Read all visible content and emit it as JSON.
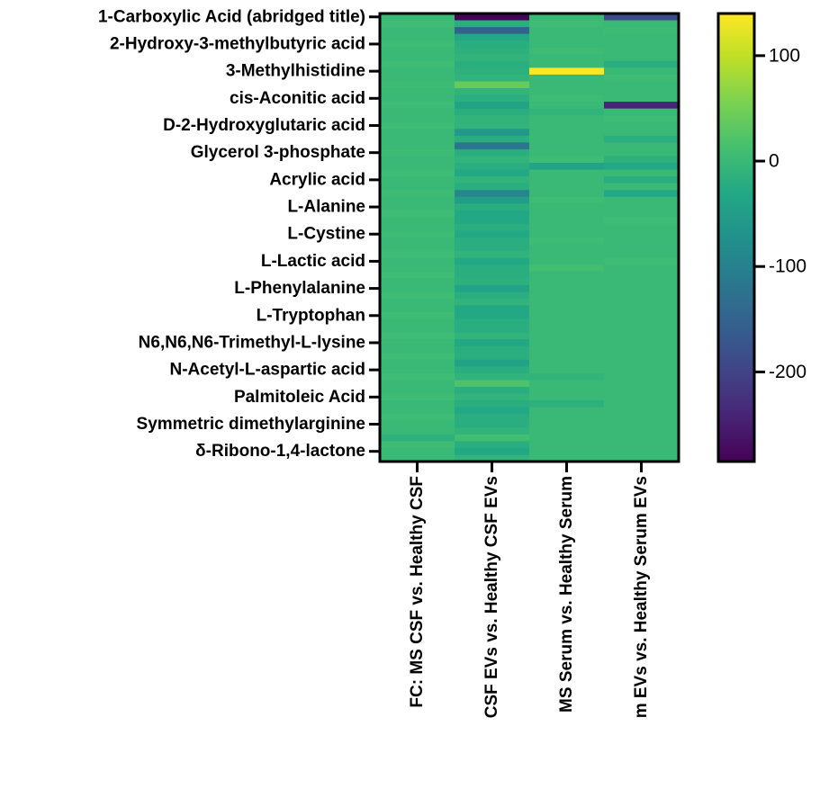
{
  "chart_data": {
    "type": "heatmap",
    "title": "",
    "xlabel": "",
    "ylabel": "",
    "columns": [
      "FC: MS CSF vs. Healthy CSF",
      "CSF EVs vs. Healthy CSF EVs",
      "MS Serum vs. Healthy Serum",
      "m EVs vs. Healthy Serum EVs"
    ],
    "row_tick_labels": [
      "1-Carboxylic Acid (abridged title)",
      "2-Hydroxy-3-methylbutyric acid",
      "3-Methylhistidine",
      "cis-Aconitic acid",
      "D-2-Hydroxyglutaric acid",
      "Glycerol 3-phosphate",
      "Acrylic acid",
      "L-Alanine",
      "L-Cystine",
      "L-Lactic acid",
      "L-Phenylalanine",
      "L-Tryptophan",
      "N6,N6,N6-Trimethyl-L-lysine",
      "N-Acetyl-L-aspartic acid",
      "Palmitoleic Acid",
      "Symmetric dimethylarginine",
      "δ-Ribono-1,4-lactone"
    ],
    "row_count": 66,
    "labeled_row_indices": [
      0,
      4,
      8,
      12,
      16,
      20,
      24,
      28,
      32,
      36,
      40,
      44,
      48,
      52,
      56,
      60,
      64
    ],
    "values": [
      [
        0,
        -280,
        0,
        -190
      ],
      [
        5,
        -20,
        5,
        0
      ],
      [
        0,
        -150,
        0,
        5
      ],
      [
        0,
        -30,
        0,
        0
      ],
      [
        5,
        -20,
        0,
        0
      ],
      [
        0,
        -15,
        5,
        0
      ],
      [
        0,
        -10,
        0,
        0
      ],
      [
        5,
        -20,
        0,
        -20
      ],
      [
        0,
        -15,
        140,
        0
      ],
      [
        0,
        -10,
        0,
        5
      ],
      [
        5,
        40,
        0,
        0
      ],
      [
        0,
        -10,
        0,
        0
      ],
      [
        0,
        -20,
        5,
        0
      ],
      [
        5,
        -40,
        0,
        -240
      ],
      [
        0,
        -20,
        -10,
        0
      ],
      [
        0,
        -10,
        0,
        5
      ],
      [
        5,
        -10,
        0,
        0
      ],
      [
        0,
        -60,
        0,
        0
      ],
      [
        0,
        -20,
        0,
        -20
      ],
      [
        0,
        -120,
        0,
        0
      ],
      [
        5,
        -20,
        0,
        0
      ],
      [
        0,
        -10,
        5,
        -15
      ],
      [
        0,
        -20,
        -40,
        -30
      ],
      [
        5,
        -30,
        0,
        0
      ],
      [
        0,
        -10,
        0,
        -20
      ],
      [
        0,
        -20,
        0,
        0
      ],
      [
        5,
        -90,
        0,
        -30
      ],
      [
        0,
        -50,
        5,
        0
      ],
      [
        0,
        -20,
        0,
        0
      ],
      [
        5,
        -30,
        0,
        0
      ],
      [
        0,
        -30,
        0,
        5
      ],
      [
        0,
        -20,
        0,
        0
      ],
      [
        5,
        -30,
        0,
        0
      ],
      [
        0,
        -20,
        5,
        0
      ],
      [
        0,
        -20,
        0,
        0
      ],
      [
        5,
        -10,
        0,
        0
      ],
      [
        0,
        -30,
        0,
        5
      ],
      [
        0,
        -20,
        10,
        0
      ],
      [
        5,
        -20,
        0,
        0
      ],
      [
        0,
        -15,
        0,
        0
      ],
      [
        0,
        -40,
        0,
        0
      ],
      [
        5,
        -20,
        0,
        0
      ],
      [
        0,
        -10,
        0,
        0
      ],
      [
        0,
        -30,
        0,
        0
      ],
      [
        5,
        -30,
        0,
        0
      ],
      [
        0,
        -20,
        0,
        0
      ],
      [
        0,
        -20,
        0,
        0
      ],
      [
        5,
        -10,
        0,
        0
      ],
      [
        0,
        -30,
        0,
        0
      ],
      [
        0,
        -20,
        0,
        0
      ],
      [
        5,
        -20,
        0,
        0
      ],
      [
        0,
        -40,
        0,
        0
      ],
      [
        0,
        -20,
        0,
        0
      ],
      [
        5,
        -10,
        -10,
        0
      ],
      [
        0,
        20,
        0,
        0
      ],
      [
        0,
        -20,
        0,
        0
      ],
      [
        5,
        -10,
        0,
        0
      ],
      [
        0,
        -20,
        -15,
        0
      ],
      [
        0,
        -30,
        0,
        0
      ],
      [
        5,
        -20,
        0,
        0
      ],
      [
        0,
        -20,
        0,
        0
      ],
      [
        0,
        -10,
        0,
        0
      ],
      [
        -15,
        10,
        0,
        0
      ],
      [
        5,
        -20,
        0,
        0
      ],
      [
        0,
        -30,
        0,
        0
      ],
      [
        0,
        -10,
        0,
        0
      ]
    ],
    "colorbar": {
      "min": -285,
      "max": 140,
      "ticks": [
        100,
        0,
        -100,
        -200
      ],
      "colormap": "viridis"
    },
    "legend_position": "right",
    "grid": false
  }
}
